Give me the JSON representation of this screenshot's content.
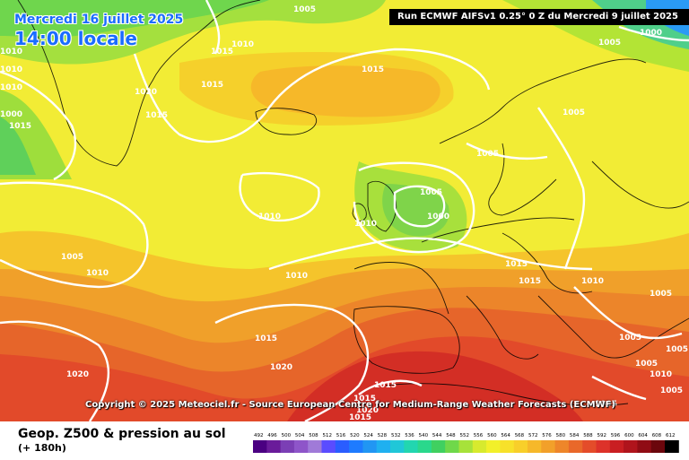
{
  "header": {
    "date_label": "Mercredi 16 juillet 2025",
    "time_label": "14:00 locale",
    "run_label": "Run ECMWF AIFSv1 0.25° 0 Z du Mercredi 9 juillet 2025"
  },
  "map": {
    "copyright": "Copyright © 2025 Meteociel.fr - Source European Centre for Medium-Range Weather Forecasts (ECMWF)",
    "isobar_labels": [
      "1005",
      "1010",
      "1010",
      "1015",
      "1015",
      "1015",
      "1015",
      "1010",
      "1020",
      "1015",
      "1005",
      "1000",
      "1005",
      "1005",
      "1010",
      "1010",
      "1005",
      "1000",
      "1010",
      "1015",
      "1015",
      "1010",
      "1005",
      "1005",
      "1005",
      "1010",
      "1005",
      "1005",
      "1005",
      "1010",
      "1015",
      "1020",
      "1020",
      "1015",
      "1015",
      "1020",
      "1015",
      "1005",
      "1010",
      "1000"
    ]
  },
  "footer": {
    "title": "Geop. Z500 & pression au sol",
    "subtitle": "(+ 180h)",
    "scale_values": [
      "492",
      "496",
      "500",
      "504",
      "508",
      "512",
      "516",
      "520",
      "524",
      "528",
      "532",
      "536",
      "540",
      "544",
      "548",
      "552",
      "556",
      "560",
      "564",
      "568",
      "572",
      "576",
      "580",
      "584",
      "588",
      "592",
      "596",
      "600",
      "604",
      "608",
      "612"
    ],
    "scale_colors": [
      "#4b0082",
      "#6a1b9a",
      "#7b3fb5",
      "#8e55c9",
      "#a07ad8",
      "#5a4cff",
      "#2a5dff",
      "#1e7bff",
      "#2196f3",
      "#1fb0f0",
      "#20c7d8",
      "#22d6b0",
      "#2ad88c",
      "#40d060",
      "#6fd84a",
      "#a7e23a",
      "#d7ea2e",
      "#f2f02a",
      "#f7e12a",
      "#f8cf2a",
      "#f6b82a",
      "#f2a02a",
      "#ee862a",
      "#e9682a",
      "#e44c2a",
      "#dd322a",
      "#c91e22",
      "#b0141c",
      "#900c14",
      "#6b060c",
      "#000000"
    ]
  }
}
